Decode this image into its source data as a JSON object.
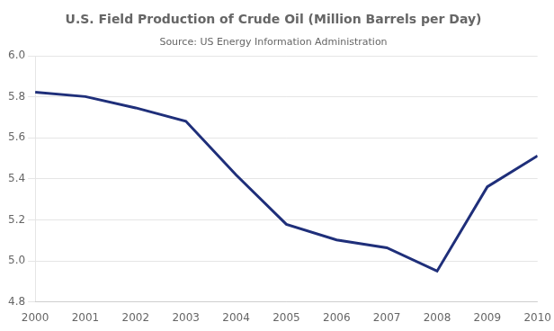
{
  "chart_data": {
    "type": "line",
    "title": "U.S. Field Production of Crude Oil (Million Barrels per Day)",
    "subtitle": "Source: US Energy Information Administration",
    "x": [
      2000,
      2001,
      2002,
      2003,
      2004,
      2005,
      2006,
      2007,
      2008,
      2009,
      2010
    ],
    "values": [
      5.822,
      5.801,
      5.746,
      5.681,
      5.419,
      5.178,
      5.102,
      5.064,
      4.95,
      5.361,
      5.512
    ],
    "color": "#1F2F7A",
    "xlim": [
      2000,
      2010
    ],
    "xticks": [
      2000,
      2001,
      2002,
      2003,
      2004,
      2005,
      2006,
      2007,
      2008,
      2009,
      2010
    ],
    "ylim": [
      4.8,
      6.0
    ],
    "yticks": [
      4.8,
      {
        "value": 5,
        "label": "5.0"
      },
      5.2,
      5.4,
      5.6,
      5.8,
      {
        "value": 6,
        "label": "6.0"
      }
    ],
    "grid": "y"
  }
}
